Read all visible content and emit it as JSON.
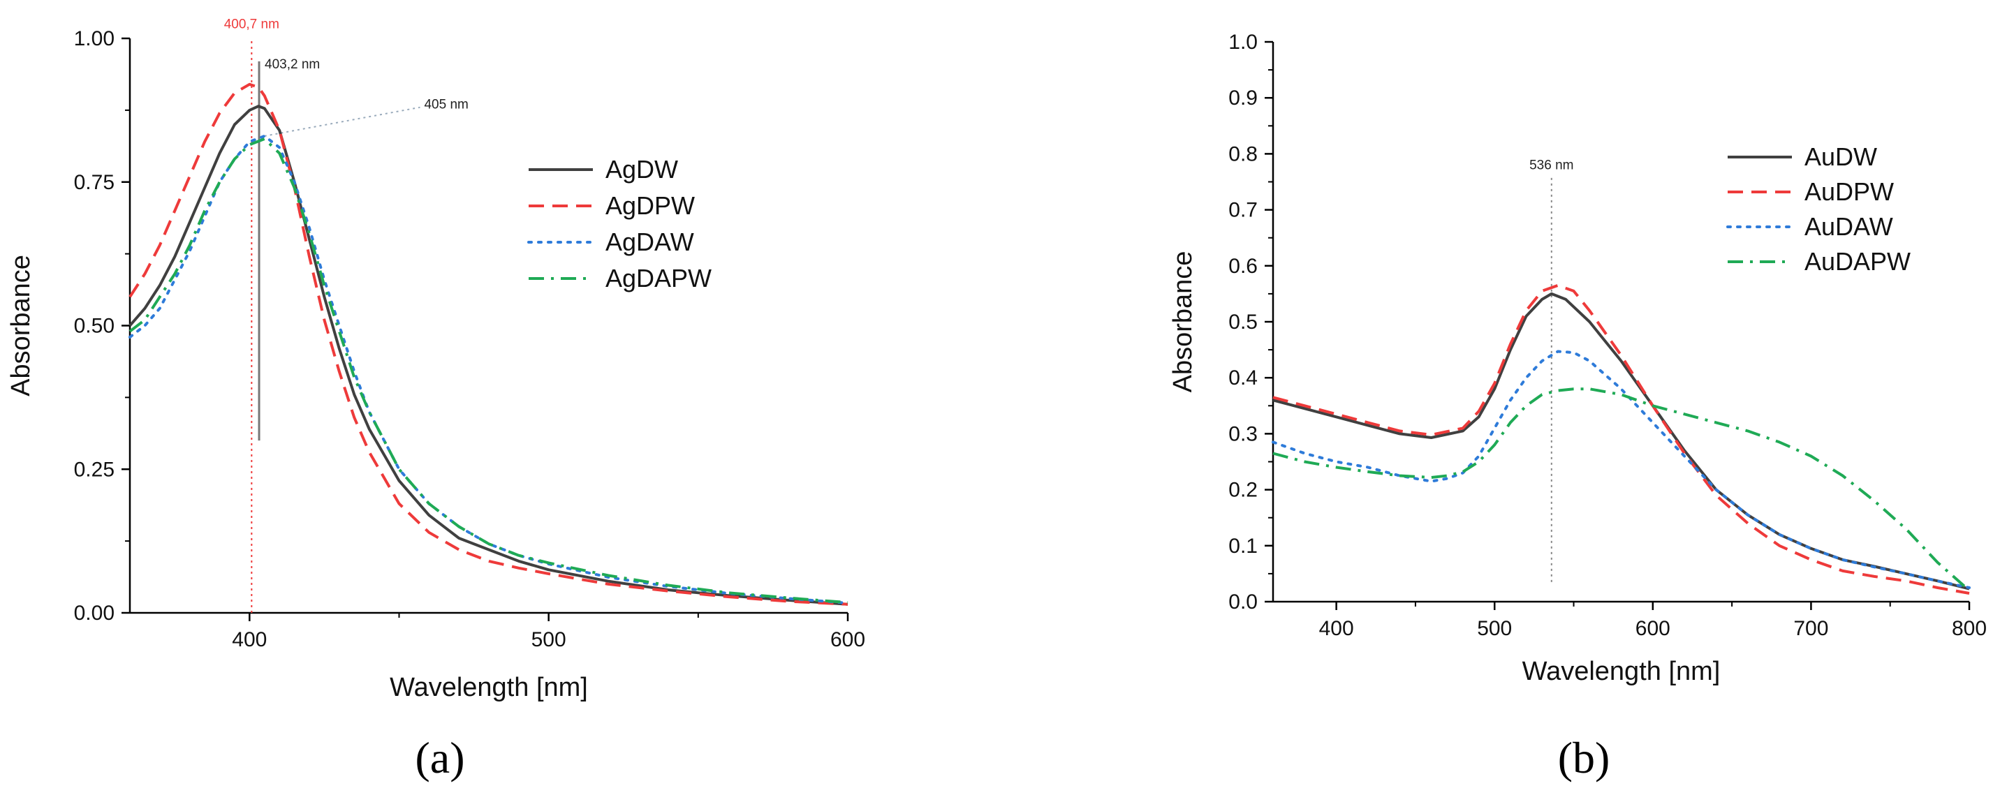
{
  "colors": {
    "axis": "#000000",
    "AgDW": "#404040",
    "AgDPW": "#ee3a3a",
    "AgDAW": "#2e7bd9",
    "AgDAPW": "#1faa55",
    "AuDW": "#404040",
    "AuDPW": "#ee3a3a",
    "AuDAW": "#2e7bd9",
    "AuDAPW": "#1faa55",
    "marker_red": "#ee3a3a",
    "marker_grey": "#888888"
  },
  "chart_data": [
    {
      "type": "line",
      "panel_label": "(a)",
      "xlabel": "Wavelength [nm]",
      "ylabel": "Absorbance",
      "xlim": [
        360,
        600
      ],
      "ylim": [
        0,
        1.0
      ],
      "xticks": [
        {
          "v": 400,
          "label": "400"
        },
        {
          "v": 500,
          "label": "500"
        },
        {
          "v": 600,
          "label": "600"
        }
      ],
      "yticks": [
        {
          "v": 0.0,
          "label": "0.00"
        },
        {
          "v": 0.25,
          "label": "0.25"
        },
        {
          "v": 0.5,
          "label": "0.50"
        },
        {
          "v": 0.75,
          "label": "0.75"
        },
        {
          "v": 1.0,
          "label": "1.00"
        }
      ],
      "grid": false,
      "legend_position": "top-right",
      "annotations": [
        {
          "text": "400,7 nm",
          "x": 400.7,
          "y": 0.0,
          "y2": 1.0,
          "style": "red-dotted-vline",
          "label_y": 1.025
        },
        {
          "text": "403,2 nm",
          "x": 403.2,
          "y": 0.3,
          "y2": 0.96,
          "style": "grey-solid-vline",
          "label_y": 0.955
        },
        {
          "text": "405 nm",
          "x": 405.0,
          "y": 0.83,
          "x2": 457,
          "y2": 0.88,
          "style": "grey-dotted-leader",
          "label_y": 0.885
        }
      ],
      "series": [
        {
          "name": "AgDW",
          "style": "solid",
          "x": [
            360,
            365,
            370,
            375,
            380,
            385,
            390,
            395,
            400,
            403,
            405,
            410,
            415,
            420,
            425,
            430,
            435,
            440,
            450,
            460,
            470,
            480,
            490,
            500,
            520,
            540,
            560,
            580,
            600
          ],
          "y": [
            0.5,
            0.53,
            0.57,
            0.62,
            0.68,
            0.74,
            0.8,
            0.85,
            0.875,
            0.882,
            0.878,
            0.84,
            0.75,
            0.65,
            0.55,
            0.46,
            0.38,
            0.32,
            0.23,
            0.17,
            0.13,
            0.11,
            0.09,
            0.075,
            0.055,
            0.04,
            0.03,
            0.022,
            0.015
          ]
        },
        {
          "name": "AgDPW",
          "style": "dashed",
          "x": [
            360,
            365,
            370,
            375,
            380,
            385,
            390,
            395,
            400,
            403,
            405,
            410,
            415,
            420,
            425,
            430,
            435,
            440,
            450,
            460,
            470,
            480,
            490,
            500,
            520,
            540,
            560,
            580,
            600
          ],
          "y": [
            0.55,
            0.59,
            0.64,
            0.7,
            0.76,
            0.82,
            0.87,
            0.905,
            0.92,
            0.915,
            0.9,
            0.84,
            0.74,
            0.62,
            0.51,
            0.42,
            0.34,
            0.28,
            0.19,
            0.14,
            0.11,
            0.09,
            0.078,
            0.068,
            0.05,
            0.038,
            0.028,
            0.02,
            0.015
          ]
        },
        {
          "name": "AgDAW",
          "style": "dotted",
          "x": [
            360,
            365,
            370,
            375,
            380,
            385,
            390,
            395,
            400,
            405,
            410,
            415,
            420,
            425,
            430,
            435,
            440,
            450,
            460,
            470,
            480,
            490,
            500,
            520,
            540,
            560,
            580,
            600
          ],
          "y": [
            0.48,
            0.5,
            0.53,
            0.58,
            0.63,
            0.69,
            0.75,
            0.79,
            0.82,
            0.83,
            0.81,
            0.75,
            0.67,
            0.58,
            0.5,
            0.42,
            0.35,
            0.25,
            0.19,
            0.15,
            0.12,
            0.1,
            0.085,
            0.062,
            0.046,
            0.034,
            0.025,
            0.017
          ]
        },
        {
          "name": "AgDAPW",
          "style": "dashdot",
          "x": [
            360,
            365,
            370,
            375,
            380,
            385,
            390,
            395,
            400,
            405,
            410,
            415,
            420,
            425,
            430,
            435,
            440,
            450,
            460,
            470,
            480,
            490,
            500,
            520,
            540,
            560,
            580,
            600
          ],
          "y": [
            0.49,
            0.51,
            0.55,
            0.59,
            0.64,
            0.7,
            0.75,
            0.79,
            0.815,
            0.825,
            0.8,
            0.74,
            0.66,
            0.57,
            0.49,
            0.41,
            0.35,
            0.25,
            0.19,
            0.15,
            0.12,
            0.1,
            0.087,
            0.065,
            0.048,
            0.035,
            0.026,
            0.018
          ]
        }
      ]
    },
    {
      "type": "line",
      "panel_label": "(b)",
      "xlabel": "Wavelength [nm]",
      "ylabel": "Absorbance",
      "xlim": [
        360,
        800
      ],
      "ylim": [
        0,
        1.0
      ],
      "xticks": [
        {
          "v": 400,
          "label": "400"
        },
        {
          "v": 500,
          "label": "500"
        },
        {
          "v": 600,
          "label": "600"
        },
        {
          "v": 700,
          "label": "700"
        },
        {
          "v": 800,
          "label": "800"
        }
      ],
      "yticks": [
        {
          "v": 0.0,
          "label": "0.0"
        },
        {
          "v": 0.1,
          "label": "0.1"
        },
        {
          "v": 0.2,
          "label": "0.2"
        },
        {
          "v": 0.3,
          "label": "0.3"
        },
        {
          "v": 0.4,
          "label": "0.4"
        },
        {
          "v": 0.5,
          "label": "0.5"
        },
        {
          "v": 0.6,
          "label": "0.6"
        },
        {
          "v": 0.7,
          "label": "0.7"
        },
        {
          "v": 0.8,
          "label": "0.8"
        },
        {
          "v": 0.9,
          "label": "0.9"
        },
        {
          "v": 1.0,
          "label": "1.0"
        }
      ],
      "grid": false,
      "legend_position": "top-right",
      "annotations": [
        {
          "text": "536 nm",
          "x": 536,
          "y": 0.035,
          "y2": 0.76,
          "style": "grey-dotted-vline",
          "label_y": 0.78
        }
      ],
      "series": [
        {
          "name": "AuDW",
          "style": "solid",
          "x": [
            360,
            380,
            400,
            420,
            440,
            460,
            480,
            490,
            500,
            510,
            520,
            530,
            536,
            545,
            560,
            580,
            600,
            620,
            640,
            660,
            680,
            700,
            720,
            740,
            760,
            780,
            800
          ],
          "y": [
            0.36,
            0.345,
            0.33,
            0.315,
            0.3,
            0.293,
            0.305,
            0.33,
            0.38,
            0.45,
            0.51,
            0.54,
            0.55,
            0.54,
            0.5,
            0.43,
            0.35,
            0.27,
            0.2,
            0.155,
            0.12,
            0.095,
            0.075,
            0.063,
            0.05,
            0.037,
            0.023
          ]
        },
        {
          "name": "AuDPW",
          "style": "dashed",
          "x": [
            360,
            380,
            400,
            420,
            440,
            460,
            480,
            490,
            500,
            510,
            520,
            530,
            540,
            550,
            560,
            580,
            600,
            620,
            640,
            660,
            680,
            700,
            720,
            740,
            760,
            780,
            800
          ],
          "y": [
            0.365,
            0.35,
            0.335,
            0.32,
            0.305,
            0.298,
            0.31,
            0.34,
            0.39,
            0.46,
            0.52,
            0.555,
            0.565,
            0.555,
            0.52,
            0.44,
            0.35,
            0.265,
            0.19,
            0.14,
            0.1,
            0.075,
            0.055,
            0.045,
            0.037,
            0.025,
            0.015
          ]
        },
        {
          "name": "AuDAW",
          "style": "dotted",
          "x": [
            360,
            380,
            400,
            420,
            440,
            460,
            470,
            480,
            490,
            500,
            510,
            520,
            530,
            540,
            550,
            560,
            580,
            600,
            620,
            640,
            660,
            680,
            700,
            720,
            740,
            760,
            780,
            800
          ],
          "y": [
            0.285,
            0.265,
            0.25,
            0.24,
            0.225,
            0.215,
            0.22,
            0.23,
            0.26,
            0.31,
            0.36,
            0.4,
            0.43,
            0.447,
            0.445,
            0.43,
            0.38,
            0.32,
            0.26,
            0.2,
            0.155,
            0.12,
            0.095,
            0.075,
            0.062,
            0.05,
            0.037,
            0.025
          ]
        },
        {
          "name": "AuDAPW",
          "style": "dashdot",
          "x": [
            360,
            380,
            400,
            420,
            440,
            460,
            470,
            480,
            490,
            500,
            510,
            520,
            530,
            540,
            550,
            560,
            580,
            600,
            620,
            640,
            660,
            680,
            700,
            720,
            740,
            760,
            780,
            800
          ],
          "y": [
            0.265,
            0.25,
            0.24,
            0.232,
            0.225,
            0.222,
            0.225,
            0.232,
            0.25,
            0.28,
            0.32,
            0.35,
            0.37,
            0.377,
            0.38,
            0.38,
            0.37,
            0.35,
            0.335,
            0.32,
            0.305,
            0.285,
            0.26,
            0.225,
            0.18,
            0.13,
            0.07,
            0.02
          ]
        }
      ]
    }
  ]
}
